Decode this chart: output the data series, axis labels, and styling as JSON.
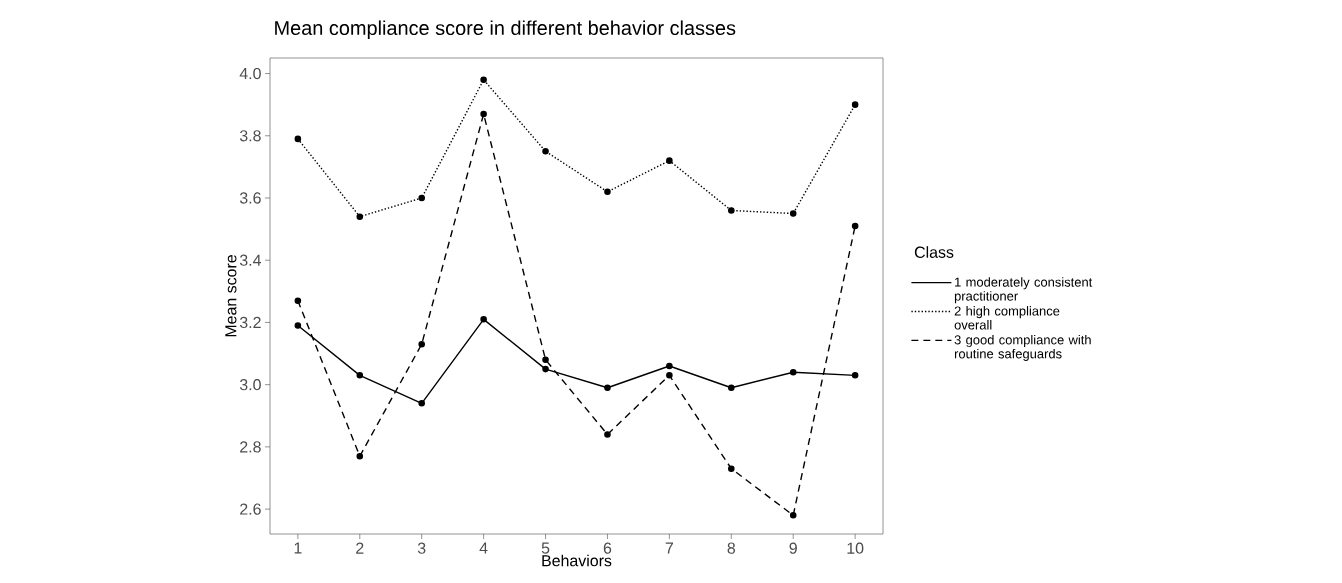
{
  "chart_data": {
    "type": "line",
    "title": "Mean compliance score in different behavior classes",
    "xlabel": "Behaviors",
    "ylabel": "Mean score",
    "legend_title": "Class",
    "legend": "right",
    "marker": "circle",
    "x": [
      1,
      2,
      3,
      4,
      5,
      6,
      7,
      8,
      9,
      10
    ],
    "xlim": [
      0.55,
      10.45
    ],
    "xticks": [
      1,
      2,
      3,
      4,
      5,
      6,
      7,
      8,
      9,
      10
    ],
    "ylim": [
      2.52,
      4.05
    ],
    "yticks": [
      {
        "value": 2.6,
        "label": "2.6"
      },
      {
        "value": 2.8,
        "label": "2.8"
      },
      {
        "value": 3.0,
        "label": "3.0"
      },
      {
        "value": 3.2,
        "label": "3.2"
      },
      {
        "value": 3.4,
        "label": "3.4"
      },
      {
        "value": 3.6,
        "label": "3.6"
      },
      {
        "value": 3.8,
        "label": "3.8"
      },
      {
        "value": 4.0,
        "label": "4.0"
      }
    ],
    "series": [
      {
        "name": "1 moderately consistent practitioner",
        "color": "#000000",
        "line_style": "solid",
        "values": [
          3.19,
          3.03,
          2.94,
          3.21,
          3.05,
          2.99,
          3.06,
          2.99,
          3.04,
          3.03
        ]
      },
      {
        "name": "2 high compliance overall",
        "color": "#000000",
        "line_style": "dotted",
        "values": [
          3.79,
          3.54,
          3.6,
          3.98,
          3.75,
          3.62,
          3.72,
          3.56,
          3.55,
          3.9
        ]
      },
      {
        "name": "3 good compliance with routine safeguards",
        "color": "#000000",
        "line_style": "dashed",
        "values": [
          3.27,
          2.77,
          3.13,
          3.87,
          3.08,
          2.84,
          3.03,
          2.73,
          2.58,
          3.51
        ]
      }
    ]
  }
}
